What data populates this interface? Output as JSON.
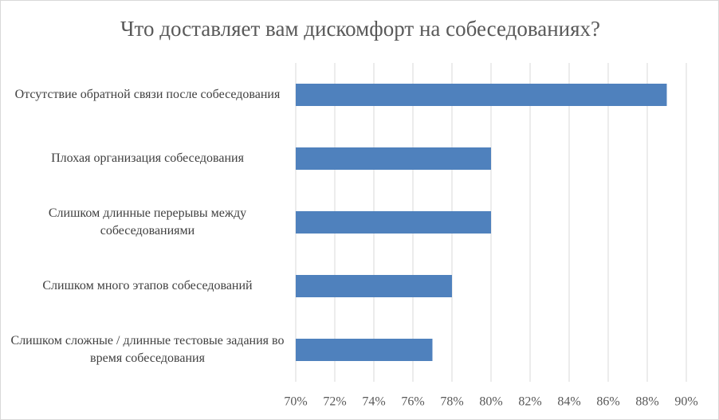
{
  "chart_data": {
    "type": "bar",
    "orientation": "horizontal",
    "title": "Что доставляет вам дискомфорт на собеседованиях?",
    "categories": [
      "Отсутствие обратной связи после собеседования",
      "Плохая организация собеседования",
      "Слишком длинные перерывы между собеседованиями",
      "Слишком много этапов собеседований",
      "Слишком сложные / длинные тестовые задания во время собеседования"
    ],
    "values": [
      89,
      80,
      80,
      78,
      77
    ],
    "color": "#4f81bd",
    "xlim": [
      70,
      90
    ],
    "xticks": [
      {
        "value": 70,
        "label": "70%"
      },
      {
        "value": 72,
        "label": "72%"
      },
      {
        "value": 74,
        "label": "74%"
      },
      {
        "value": 76,
        "label": "76%"
      },
      {
        "value": 78,
        "label": "78%"
      },
      {
        "value": 80,
        "label": "80%"
      },
      {
        "value": 82,
        "label": "82%"
      },
      {
        "value": 84,
        "label": "84%"
      },
      {
        "value": 86,
        "label": "86%"
      },
      {
        "value": 88,
        "label": "88%"
      },
      {
        "value": 90,
        "label": "90%"
      }
    ],
    "grid": true
  }
}
